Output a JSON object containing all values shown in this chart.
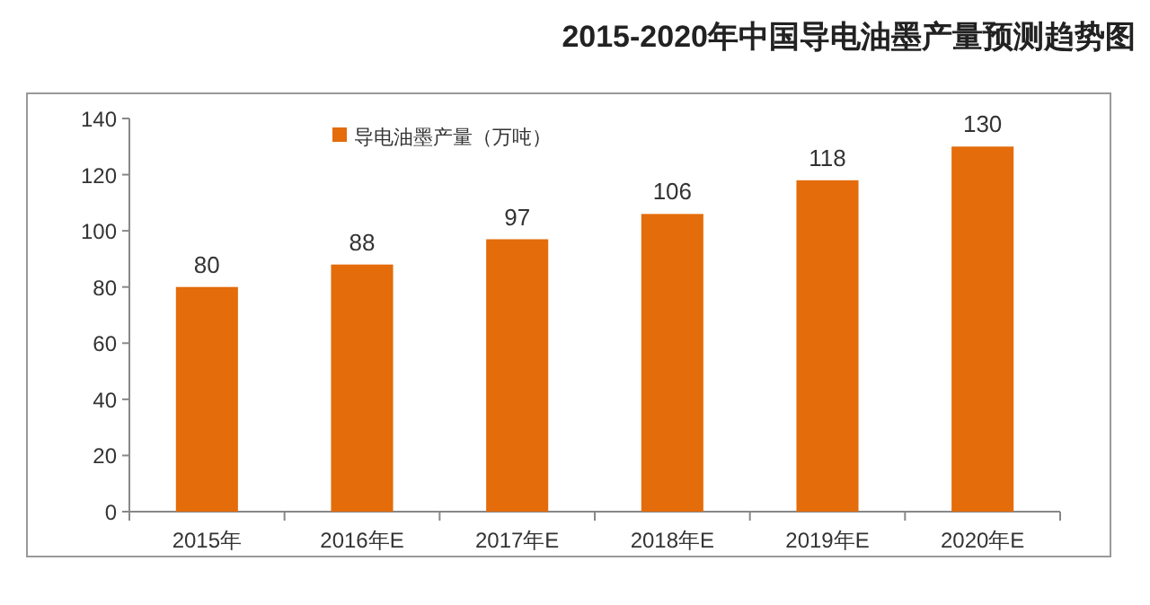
{
  "chart_data": {
    "type": "bar",
    "title": "2015-2020年中国导电油墨产量预测趋势图",
    "categories": [
      "2015年",
      "2016年E",
      "2017年E",
      "2018年E",
      "2019年E",
      "2020年E"
    ],
    "series": [
      {
        "name": "导电油墨产量（万吨）",
        "color": "#e46c0a",
        "values": [
          80,
          88,
          97,
          106,
          118,
          130
        ]
      }
    ],
    "ylim": [
      0,
      140
    ],
    "yticks": [
      0,
      20,
      40,
      60,
      80,
      100,
      120,
      140
    ],
    "grid": false,
    "legend": "top",
    "data_labels": true
  }
}
